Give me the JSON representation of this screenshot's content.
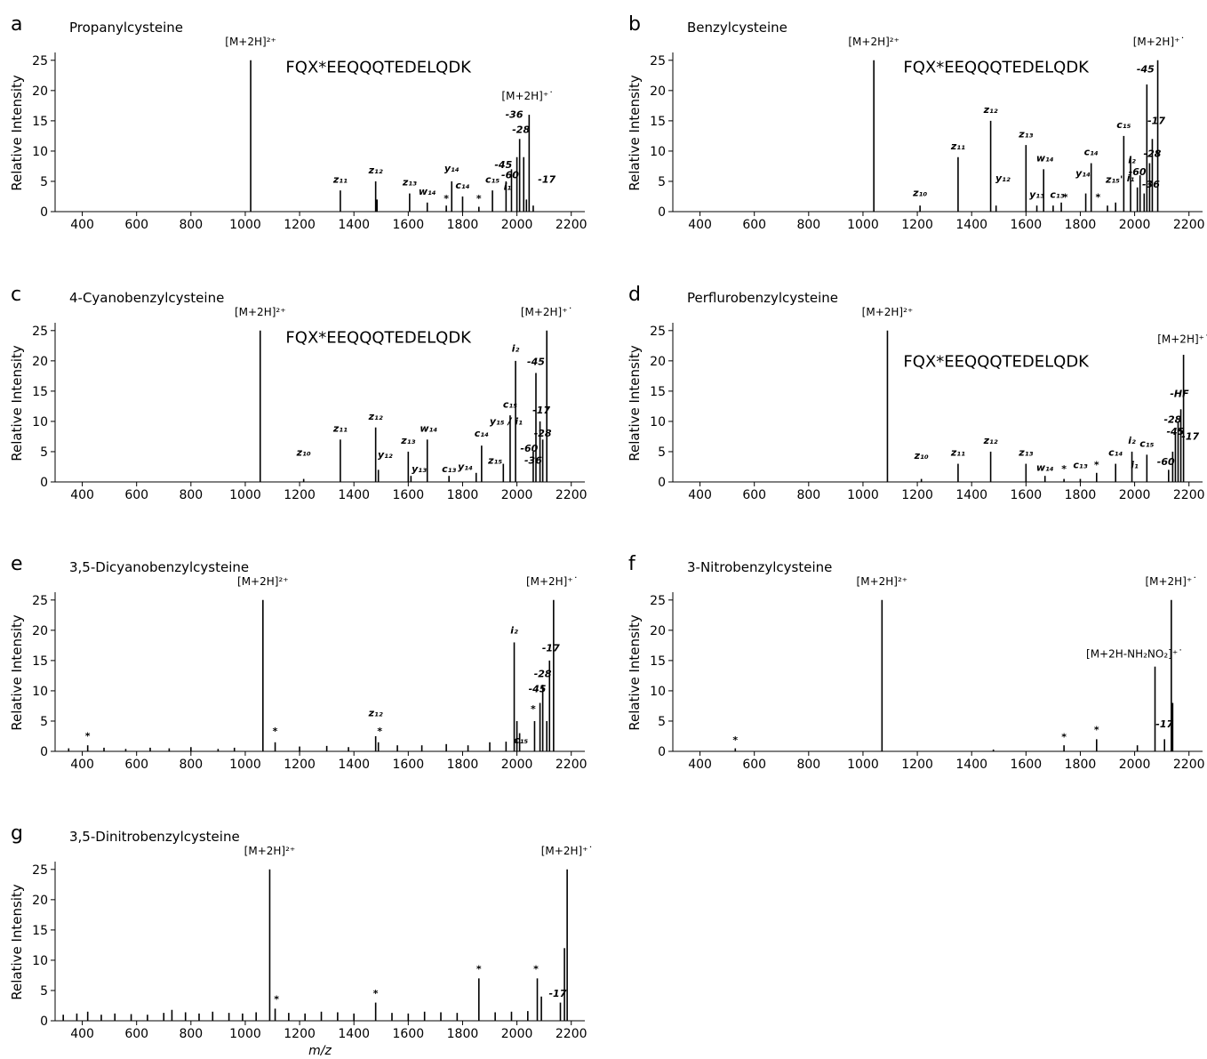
{
  "chart_data": [
    {
      "type": "stem",
      "panel_label": "a",
      "title": "Propanylcysteine",
      "ylabel": "Relative Intensity",
      "color": "#000000",
      "xlim": [
        300,
        2250
      ],
      "ylim": [
        0,
        26
      ],
      "xticks": [
        400,
        600,
        800,
        1000,
        1200,
        1400,
        1600,
        1800,
        2000,
        2200
      ],
      "yticks": [
        0,
        5,
        10,
        15,
        20,
        25
      ],
      "x": [
        1020,
        1350,
        1480,
        1485,
        1605,
        1670,
        1740,
        1760,
        1800,
        1860,
        1910,
        1960,
        1980,
        2000,
        2010,
        2025,
        2035,
        2045,
        2060
      ],
      "values": [
        25,
        3.5,
        5,
        2,
        3,
        1.5,
        1,
        5,
        2.5,
        0.8,
        3.5,
        5,
        7,
        9,
        12,
        9,
        2,
        16,
        1
      ],
      "annotations": [
        {
          "text": "[M+2H]²⁺",
          "x": 1020,
          "y": 27.5
        },
        {
          "text": "FQX*EEQQQTEDELQDK",
          "x": 1490,
          "y": 23
        },
        {
          "text": "[M+2H]⁺˙",
          "x": 2040,
          "y": 18.5
        },
        {
          "text": "z₁₁",
          "x": 1350,
          "y": 4.8
        },
        {
          "text": "z₁₂",
          "x": 1480,
          "y": 6.3
        },
        {
          "text": "z₁₃",
          "x": 1605,
          "y": 4.3
        },
        {
          "text": "w₁₄",
          "x": 1670,
          "y": 2.8
        },
        {
          "text": "y₁₄",
          "x": 1760,
          "y": 6.6
        },
        {
          "text": "c₁₄",
          "x": 1800,
          "y": 3.8
        },
        {
          "text": "c₁₅",
          "x": 1910,
          "y": 4.8
        },
        {
          "text": "*",
          "x": 1740,
          "y": 1.6
        },
        {
          "text": "*",
          "x": 1860,
          "y": 1.6
        },
        {
          "text": "-45",
          "x": 1950,
          "y": 7.2
        },
        {
          "text": "-60",
          "x": 1975,
          "y": 5.5
        },
        {
          "text": "i₁",
          "x": 1965,
          "y": 3.6
        },
        {
          "text": "-36",
          "x": 1990,
          "y": 15.5
        },
        {
          "text": "-28",
          "x": 2015,
          "y": 13
        },
        {
          "text": "-17",
          "x": 2110,
          "y": 4.8
        }
      ]
    },
    {
      "type": "stem",
      "panel_label": "b",
      "title": "Benzylcysteine",
      "ylabel": "Relative Intensity",
      "color": "#000000",
      "xlim": [
        300,
        2250
      ],
      "ylim": [
        0,
        26
      ],
      "xticks": [
        400,
        600,
        800,
        1000,
        1200,
        1400,
        1600,
        1800,
        2000,
        2200
      ],
      "yticks": [
        0,
        5,
        10,
        15,
        20,
        25
      ],
      "x": [
        1040,
        1210,
        1350,
        1470,
        1490,
        1600,
        1640,
        1665,
        1700,
        1730,
        1820,
        1840,
        1900,
        1930,
        1960,
        1985,
        2010,
        2020,
        2035,
        2045,
        2055,
        2065,
        2085
      ],
      "values": [
        25,
        1,
        9,
        15,
        1,
        11,
        1,
        7,
        1,
        1.5,
        3,
        8,
        1,
        1.5,
        12.5,
        9,
        4,
        6,
        3,
        21,
        8,
        12,
        25
      ],
      "annotations": [
        {
          "text": "[M+2H]²⁺",
          "x": 1040,
          "y": 27.5
        },
        {
          "text": "FQX*EEQQQTEDELQDK",
          "x": 1490,
          "y": 23
        },
        {
          "text": "[M+2H]⁺˙",
          "x": 2090,
          "y": 27.5
        },
        {
          "text": "z₁₀",
          "x": 1210,
          "y": 2.6
        },
        {
          "text": "z₁₁",
          "x": 1350,
          "y": 10.3
        },
        {
          "text": "z₁₂",
          "x": 1470,
          "y": 16.3
        },
        {
          "text": "y₁₂",
          "x": 1515,
          "y": 5
        },
        {
          "text": "z₁₃",
          "x": 1600,
          "y": 12.3
        },
        {
          "text": "y₁₃",
          "x": 1640,
          "y": 2.3
        },
        {
          "text": "w₁₄",
          "x": 1670,
          "y": 8.3
        },
        {
          "text": "c₁₃",
          "x": 1715,
          "y": 2.3
        },
        {
          "text": "*",
          "x": 1745,
          "y": 1.8
        },
        {
          "text": "*",
          "x": 1865,
          "y": 1.8
        },
        {
          "text": "y₁₄",
          "x": 1810,
          "y": 5.8
        },
        {
          "text": "c₁₄",
          "x": 1840,
          "y": 9.3
        },
        {
          "text": "z₁₅'",
          "x": 1925,
          "y": 4.8
        },
        {
          "text": "c₁₅",
          "x": 1960,
          "y": 13.8
        },
        {
          "text": "i₂",
          "x": 1990,
          "y": 8
        },
        {
          "text": "i₁",
          "x": 1985,
          "y": 5
        },
        {
          "text": "-60",
          "x": 2010,
          "y": 6
        },
        {
          "text": "-45",
          "x": 2040,
          "y": 23
        },
        {
          "text": "-17",
          "x": 2080,
          "y": 14.5
        },
        {
          "text": "-28",
          "x": 2065,
          "y": 9
        },
        {
          "text": "-36",
          "x": 2060,
          "y": 4
        }
      ]
    },
    {
      "type": "stem",
      "panel_label": "c",
      "title": "4-Cyanobenzylcysteine",
      "ylabel": "Relative Intensity",
      "color": "#000000",
      "xlim": [
        300,
        2250
      ],
      "ylim": [
        0,
        26
      ],
      "xticks": [
        400,
        600,
        800,
        1000,
        1200,
        1400,
        1600,
        1800,
        2000,
        2200
      ],
      "yticks": [
        0,
        5,
        10,
        15,
        20,
        25
      ],
      "x": [
        1055,
        1215,
        1350,
        1480,
        1490,
        1600,
        1610,
        1670,
        1750,
        1850,
        1870,
        1950,
        1975,
        1995,
        2060,
        2070,
        2085,
        2095,
        2110
      ],
      "values": [
        25,
        0.5,
        7,
        9,
        2,
        5,
        1,
        7,
        1,
        1.5,
        6,
        3,
        11,
        20,
        5,
        18,
        10,
        7,
        25
      ],
      "annotations": [
        {
          "text": "[M+2H]²⁺",
          "x": 1055,
          "y": 27.5
        },
        {
          "text": "FQX*EEQQQTEDELQDK",
          "x": 1490,
          "y": 23
        },
        {
          "text": "[M+2H]⁺˙",
          "x": 2110,
          "y": 27.5
        },
        {
          "text": "z₁₀",
          "x": 1215,
          "y": 4.3
        },
        {
          "text": "z₁₁",
          "x": 1350,
          "y": 8.3
        },
        {
          "text": "z₁₂",
          "x": 1480,
          "y": 10.3
        },
        {
          "text": "y₁₂",
          "x": 1515,
          "y": 4
        },
        {
          "text": "z₁₃",
          "x": 1600,
          "y": 6.3
        },
        {
          "text": "y₁₃",
          "x": 1640,
          "y": 1.6
        },
        {
          "text": "w₁₄",
          "x": 1675,
          "y": 8.3
        },
        {
          "text": "c₁₃",
          "x": 1750,
          "y": 1.6
        },
        {
          "text": "y₁₄",
          "x": 1810,
          "y": 2
        },
        {
          "text": "c₁₄",
          "x": 1870,
          "y": 7.5
        },
        {
          "text": "z₁₅",
          "x": 1920,
          "y": 3
        },
        {
          "text": "y₁₅ / i₁",
          "x": 1960,
          "y": 9.5
        },
        {
          "text": "c₁₅",
          "x": 1975,
          "y": 12.3
        },
        {
          "text": "i₂",
          "x": 1995,
          "y": 21.5
        },
        {
          "text": "-45",
          "x": 2070,
          "y": 19.3
        },
        {
          "text": "-17",
          "x": 2090,
          "y": 11.3
        },
        {
          "text": "-28",
          "x": 2095,
          "y": 7.5
        },
        {
          "text": "-60",
          "x": 2045,
          "y": 5
        },
        {
          "text": "-36",
          "x": 2060,
          "y": 3
        }
      ]
    },
    {
      "type": "stem",
      "panel_label": "d",
      "title": "Perflurobenzylcysteine",
      "ylabel": "Relative Intensity",
      "color": "#000000",
      "xlim": [
        300,
        2250
      ],
      "ylim": [
        0,
        26
      ],
      "xticks": [
        400,
        600,
        800,
        1000,
        1200,
        1400,
        1600,
        1800,
        2000,
        2200
      ],
      "yticks": [
        0,
        5,
        10,
        15,
        20,
        25
      ],
      "x": [
        1090,
        1215,
        1350,
        1470,
        1600,
        1670,
        1740,
        1800,
        1860,
        1930,
        1990,
        2045,
        2125,
        2140,
        2150,
        2160,
        2170,
        2180
      ],
      "values": [
        25,
        0.5,
        3,
        5,
        3,
        1,
        0.5,
        0.5,
        1.5,
        3,
        5,
        4.5,
        2,
        5,
        8,
        10,
        12,
        21
      ],
      "annotations": [
        {
          "text": "[M+2H]²⁺",
          "x": 1090,
          "y": 27.5
        },
        {
          "text": "FQX*EEQQQTEDELQDK",
          "x": 1490,
          "y": 19
        },
        {
          "text": "[M+2H]⁺˙",
          "x": 2180,
          "y": 23
        },
        {
          "text": "z₁₀",
          "x": 1215,
          "y": 3.8
        },
        {
          "text": "z₁₁",
          "x": 1350,
          "y": 4.3
        },
        {
          "text": "z₁₂",
          "x": 1470,
          "y": 6.3
        },
        {
          "text": "z₁₃",
          "x": 1600,
          "y": 4.3
        },
        {
          "text": "w₁₄",
          "x": 1670,
          "y": 1.8
        },
        {
          "text": "*",
          "x": 1740,
          "y": 1.6
        },
        {
          "text": "c₁₃",
          "x": 1800,
          "y": 2.3
        },
        {
          "text": "*",
          "x": 1860,
          "y": 2.3
        },
        {
          "text": "c₁₄",
          "x": 1930,
          "y": 4.3
        },
        {
          "text": "i₂",
          "x": 1990,
          "y": 6.3
        },
        {
          "text": "i₁",
          "x": 2000,
          "y": 2.3
        },
        {
          "text": "c₁₅",
          "x": 2045,
          "y": 5.8
        },
        {
          "text": "-HF",
          "x": 2165,
          "y": 14
        },
        {
          "text": "-28",
          "x": 2140,
          "y": 9.8
        },
        {
          "text": "-45",
          "x": 2150,
          "y": 7.8
        },
        {
          "text": "-60",
          "x": 2115,
          "y": 2.8
        },
        {
          "text": "-17",
          "x": 2205,
          "y": 7
        }
      ]
    },
    {
      "type": "stem",
      "panel_label": "e",
      "title": "3,5-Dicyanobenzylcysteine",
      "ylabel": "Relative Intensity",
      "color": "#000000",
      "xlim": [
        300,
        2250
      ],
      "ylim": [
        0,
        26
      ],
      "xticks": [
        400,
        600,
        800,
        1000,
        1200,
        1400,
        1600,
        1800,
        2000,
        2200
      ],
      "yticks": [
        0,
        5,
        10,
        15,
        20,
        25
      ],
      "x": [
        350,
        420,
        480,
        560,
        650,
        720,
        800,
        900,
        960,
        1065,
        1110,
        1200,
        1300,
        1380,
        1480,
        1490,
        1560,
        1650,
        1740,
        1820,
        1900,
        1960,
        1990,
        2000,
        2010,
        2065,
        2085,
        2095,
        2110,
        2120,
        2135
      ],
      "values": [
        0.5,
        1,
        0.6,
        0.4,
        0.6,
        0.5,
        0.7,
        0.4,
        0.6,
        25,
        1.5,
        0.8,
        0.9,
        0.7,
        2.5,
        1.5,
        1,
        1,
        1.2,
        1,
        1.5,
        1.6,
        18,
        5,
        3,
        5,
        8,
        11,
        5,
        15,
        25
      ],
      "annotations": [
        {
          "text": "[M+2H]²⁺",
          "x": 1065,
          "y": 27.5
        },
        {
          "text": "[M+2H]⁺˙",
          "x": 2130,
          "y": 27.5
        },
        {
          "text": "*",
          "x": 420,
          "y": 2
        },
        {
          "text": "*",
          "x": 1110,
          "y": 2.8
        },
        {
          "text": "z₁₂",
          "x": 1480,
          "y": 5.8
        },
        {
          "text": "*",
          "x": 1495,
          "y": 2.8
        },
        {
          "text": "i₂",
          "x": 1990,
          "y": 19.5
        },
        {
          "text": "c₁₅",
          "x": 2015,
          "y": 1.3
        },
        {
          "text": "*",
          "x": 2060,
          "y": 6.5
        },
        {
          "text": "-45",
          "x": 2075,
          "y": 9.8
        },
        {
          "text": "-28",
          "x": 2095,
          "y": 12.3
        },
        {
          "text": "-17",
          "x": 2125,
          "y": 16.5
        }
      ]
    },
    {
      "type": "stem",
      "panel_label": "f",
      "title": "3-Nitrobenzylcysteine",
      "ylabel": "Relative Intensity",
      "color": "#000000",
      "xlim": [
        300,
        2250
      ],
      "ylim": [
        0,
        26
      ],
      "xticks": [
        400,
        600,
        800,
        1000,
        1200,
        1400,
        1600,
        1800,
        2000,
        2200
      ],
      "yticks": [
        0,
        5,
        10,
        15,
        20,
        25
      ],
      "x": [
        530,
        1070,
        1480,
        1740,
        1860,
        2010,
        2075,
        2110,
        2135,
        2140
      ],
      "values": [
        0.5,
        25,
        0.3,
        1,
        2,
        1,
        14,
        2,
        25,
        8
      ],
      "annotations": [
        {
          "text": "[M+2H]²⁺",
          "x": 1070,
          "y": 27.5
        },
        {
          "text": "[M+2H]⁺˙",
          "x": 2135,
          "y": 27.5
        },
        {
          "text": "[M+2H-NH₂NO₂]⁺˙",
          "x": 2000,
          "y": 15.5
        },
        {
          "text": "*",
          "x": 530,
          "y": 1.3
        },
        {
          "text": "*",
          "x": 1740,
          "y": 1.8
        },
        {
          "text": "*",
          "x": 1860,
          "y": 3
        },
        {
          "text": "-17",
          "x": 2110,
          "y": 4
        }
      ]
    },
    {
      "type": "stem",
      "panel_label": "g",
      "title": "3,5-Dinitrobenzylcysteine",
      "ylabel": "Relative Intensity",
      "xlabel": "m/z",
      "color": "#000000",
      "xlim": [
        300,
        2250
      ],
      "ylim": [
        0,
        26
      ],
      "xticks": [
        400,
        600,
        800,
        1000,
        1200,
        1400,
        1600,
        1800,
        2000,
        2200
      ],
      "yticks": [
        0,
        5,
        10,
        15,
        20,
        25
      ],
      "x": [
        330,
        380,
        420,
        470,
        520,
        580,
        640,
        700,
        730,
        780,
        830,
        880,
        940,
        990,
        1040,
        1090,
        1110,
        1160,
        1220,
        1280,
        1340,
        1400,
        1480,
        1540,
        1600,
        1660,
        1720,
        1780,
        1860,
        1920,
        1980,
        2040,
        2075,
        2090,
        2160,
        2175,
        2185
      ],
      "values": [
        1,
        1.2,
        1.5,
        1,
        1.2,
        1.1,
        1,
        1.3,
        1.8,
        1.4,
        1.2,
        1.5,
        1.3,
        1.2,
        1.4,
        25,
        2,
        1.3,
        1.2,
        1.5,
        1.4,
        1.2,
        3,
        1.3,
        1.2,
        1.5,
        1.4,
        1.3,
        7,
        1.4,
        1.5,
        1.6,
        7,
        4,
        3,
        12,
        25
      ],
      "annotations": [
        {
          "text": "[M+2H]²⁺",
          "x": 1090,
          "y": 27.5
        },
        {
          "text": "[M+2H]⁺˙",
          "x": 2185,
          "y": 27.5
        },
        {
          "text": "*",
          "x": 1115,
          "y": 3
        },
        {
          "text": "*",
          "x": 1480,
          "y": 4
        },
        {
          "text": "*",
          "x": 1860,
          "y": 8
        },
        {
          "text": "*",
          "x": 2070,
          "y": 8
        },
        {
          "text": "-17",
          "x": 2150,
          "y": 4
        }
      ]
    }
  ]
}
